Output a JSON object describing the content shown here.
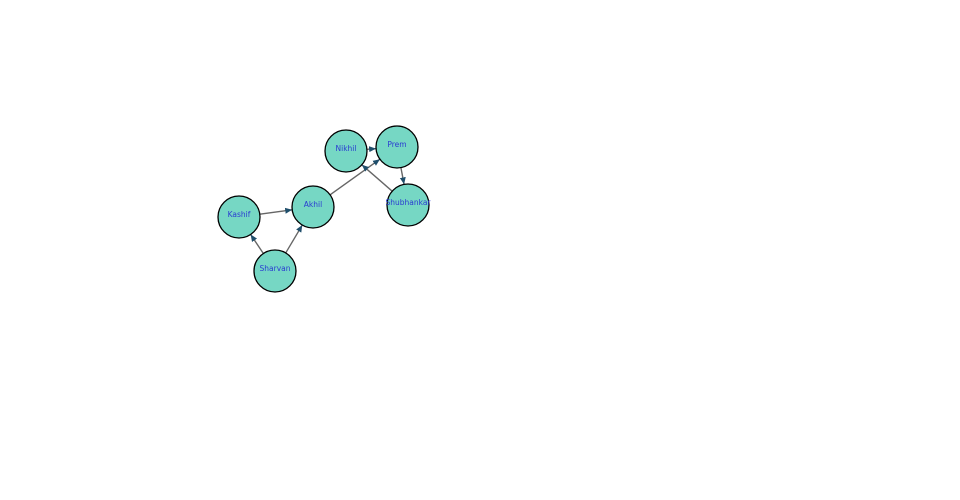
{
  "graph": {
    "directed": true,
    "node_color": "#76d7c4",
    "label_color": "#2a3bd1",
    "edge_color": "#666666",
    "nodes": [
      {
        "id": "Nikhil",
        "label": "Nikhil"
      },
      {
        "id": "Prem",
        "label": "Prem"
      },
      {
        "id": "Kashif",
        "label": "Kashif"
      },
      {
        "id": "Akhil",
        "label": "Akhil"
      },
      {
        "id": "Shubhankar",
        "label": "Shubhankar"
      },
      {
        "id": "Sharvan",
        "label": "Sharvan"
      }
    ],
    "edges": [
      {
        "from": "Kashif",
        "to": "Akhil"
      },
      {
        "from": "Sharvan",
        "to": "Kashif"
      },
      {
        "from": "Sharvan",
        "to": "Akhil"
      },
      {
        "from": "Akhil",
        "to": "Prem"
      },
      {
        "from": "Nikhil",
        "to": "Prem"
      },
      {
        "from": "Prem",
        "to": "Shubhankar"
      },
      {
        "from": "Shubhankar",
        "to": "Nikhil"
      }
    ]
  }
}
